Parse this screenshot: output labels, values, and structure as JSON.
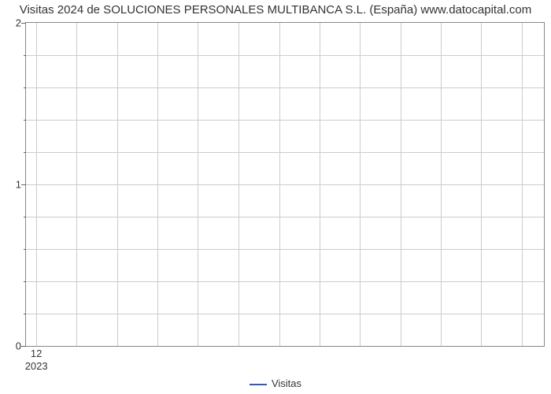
{
  "chart": {
    "type": "line",
    "title": "Visitas 2024 de SOLUCIONES PERSONALES MULTIBANCA S.L. (España) www.datocapital.com",
    "title_fontsize": 15,
    "title_color": "#333333",
    "background_color": "#ffffff",
    "axis_line_color": "#888888",
    "grid_color": "#cccccc",
    "tick_color": "#666666",
    "label_color": "#333333",
    "label_fontsize": 13,
    "y_axis": {
      "min": 0,
      "max": 2,
      "major_ticks": [
        0,
        1,
        2
      ],
      "minor_tick_count_between": 4
    },
    "x_axis": {
      "ticks": [
        {
          "pos": 0.02,
          "label": "12",
          "sublabel": "2023"
        }
      ],
      "vgrid_positions_pct": [
        2,
        9.8,
        17.6,
        25.4,
        33.2,
        41.0,
        48.9,
        56.7,
        64.5,
        72.3,
        80.1,
        87.9,
        95.8
      ]
    },
    "series": [
      {
        "name": "Visitas",
        "color": "#2e5cb8",
        "line_width": 2,
        "data": []
      }
    ],
    "legend": {
      "label": "Visitas"
    }
  }
}
